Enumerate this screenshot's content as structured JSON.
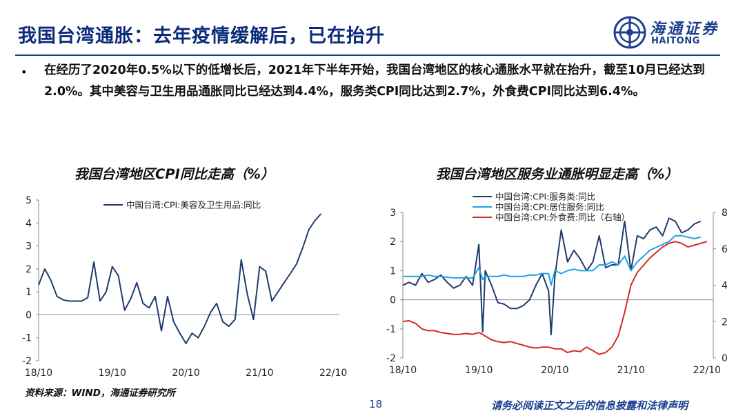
{
  "header": {
    "title": "我国台湾通胀：去年疫情缓解后，已在抬升",
    "logo_cn": "海通证券",
    "logo_en": "HAITONG"
  },
  "bullet": {
    "marker": "•",
    "text": "在经历了2020年0.5%以下的低增长后，2021年下半年开始，我国台湾地区的核心通胀水平就在抬升，截至10月已经达到2.0%。其中美容与卫生用品通胀同比已经达到4.4%，服务类CPI同比达到2.7%，外食费CPI同比达到6.4%。"
  },
  "footer": {
    "source": "资料来源：WIND，海通证券研究所",
    "page": "18",
    "disclaimer": "请务必阅读正文之后的信息披露和法律声明"
  },
  "colors": {
    "title": "#0b2a7a",
    "navy_series": "#1f3a6e",
    "light_blue_series": "#1aa3e8",
    "red_series": "#d42a20"
  },
  "chart_data": [
    {
      "type": "line",
      "title": "我国台湾地区CPI同比走高（%）",
      "x_ticks": [
        "18/10",
        "19/10",
        "20/10",
        "21/10",
        "22/10"
      ],
      "ylim": [
        -2,
        5
      ],
      "y_ticks": [
        "5",
        "4",
        "3",
        "2",
        "1",
        "0",
        "-1",
        "-2"
      ],
      "grid": false,
      "legend": "top",
      "x_range": [
        2018.75,
        2022.833
      ],
      "series": [
        {
          "name": "中国台湾:CPI:美容及卫生用品:同比",
          "color": "#1f3a6e",
          "points": [
            [
              2018.75,
              1.3
            ],
            [
              2018.833,
              2.0
            ],
            [
              2018.917,
              1.5
            ],
            [
              2019.0,
              0.8
            ],
            [
              2019.083,
              0.65
            ],
            [
              2019.167,
              0.6
            ],
            [
              2019.25,
              0.6
            ],
            [
              2019.333,
              0.6
            ],
            [
              2019.417,
              0.75
            ],
            [
              2019.5,
              2.3
            ],
            [
              2019.583,
              0.6
            ],
            [
              2019.667,
              1.0
            ],
            [
              2019.75,
              2.1
            ],
            [
              2019.833,
              1.7
            ],
            [
              2019.917,
              0.2
            ],
            [
              2020.0,
              0.7
            ],
            [
              2020.083,
              1.4
            ],
            [
              2020.167,
              0.5
            ],
            [
              2020.25,
              0.3
            ],
            [
              2020.333,
              0.8
            ],
            [
              2020.417,
              -0.7
            ],
            [
              2020.5,
              0.8
            ],
            [
              2020.583,
              -0.3
            ],
            [
              2020.667,
              -0.8
            ],
            [
              2020.75,
              -1.25
            ],
            [
              2020.833,
              -0.8
            ],
            [
              2020.917,
              -1.0
            ],
            [
              2021.0,
              -0.5
            ],
            [
              2021.083,
              0.1
            ],
            [
              2021.167,
              0.5
            ],
            [
              2021.25,
              -0.3
            ],
            [
              2021.333,
              -0.5
            ],
            [
              2021.417,
              -0.2
            ],
            [
              2021.5,
              2.4
            ],
            [
              2021.583,
              0.9
            ],
            [
              2021.667,
              -0.2
            ],
            [
              2021.75,
              2.1
            ],
            [
              2021.833,
              1.9
            ],
            [
              2021.917,
              0.6
            ],
            [
              2022.0,
              1.0
            ],
            [
              2022.083,
              1.4
            ],
            [
              2022.167,
              1.8
            ],
            [
              2022.25,
              2.2
            ],
            [
              2022.333,
              2.9
            ],
            [
              2022.417,
              3.7
            ],
            [
              2022.5,
              4.1
            ],
            [
              2022.583,
              4.4
            ]
          ]
        }
      ]
    },
    {
      "type": "line",
      "title": "我国台湾地区服务业通胀明显走高（%）",
      "x_ticks": [
        "18/10",
        "19/10",
        "20/10",
        "21/10",
        "22/10"
      ],
      "ylim": [
        -2,
        3
      ],
      "y_ticks": [
        "3",
        "2",
        "1",
        "0",
        "-1",
        "-2"
      ],
      "y2lim": [
        0,
        8
      ],
      "y2_ticks": [
        "8",
        "6",
        "4",
        "2",
        "0"
      ],
      "grid": false,
      "legend": "top",
      "x_range": [
        2018.75,
        2022.833
      ],
      "series": [
        {
          "name": "中国台湾:CPI:服务类:同比",
          "color": "#1f3a6e",
          "axis": "left",
          "points": [
            [
              2018.75,
              0.5
            ],
            [
              2018.833,
              0.6
            ],
            [
              2018.917,
              0.5
            ],
            [
              2019.0,
              0.9
            ],
            [
              2019.083,
              0.6
            ],
            [
              2019.167,
              0.7
            ],
            [
              2019.25,
              0.85
            ],
            [
              2019.333,
              0.6
            ],
            [
              2019.417,
              0.4
            ],
            [
              2019.5,
              0.5
            ],
            [
              2019.583,
              0.8
            ],
            [
              2019.667,
              0.5
            ],
            [
              2019.75,
              1.9
            ],
            [
              2019.8,
              -1.1
            ],
            [
              2019.833,
              1.0
            ],
            [
              2019.917,
              0.5
            ],
            [
              2020.0,
              -0.1
            ],
            [
              2020.083,
              -0.15
            ],
            [
              2020.167,
              -0.3
            ],
            [
              2020.25,
              -0.3
            ],
            [
              2020.333,
              -0.2
            ],
            [
              2020.417,
              0.0
            ],
            [
              2020.5,
              0.5
            ],
            [
              2020.583,
              0.9
            ],
            [
              2020.667,
              0.3
            ],
            [
              2020.7,
              -1.2
            ],
            [
              2020.75,
              0.8
            ],
            [
              2020.833,
              2.4
            ],
            [
              2020.917,
              1.3
            ],
            [
              2021.0,
              1.7
            ],
            [
              2021.083,
              1.4
            ],
            [
              2021.167,
              1.0
            ],
            [
              2021.25,
              1.3
            ],
            [
              2021.333,
              2.2
            ],
            [
              2021.417,
              1.1
            ],
            [
              2021.5,
              1.2
            ],
            [
              2021.583,
              1.2
            ],
            [
              2021.667,
              2.7
            ],
            [
              2021.75,
              1.0
            ],
            [
              2021.833,
              2.2
            ],
            [
              2021.917,
              2.1
            ],
            [
              2022.0,
              2.4
            ],
            [
              2022.083,
              2.5
            ],
            [
              2022.167,
              2.2
            ],
            [
              2022.25,
              2.8
            ],
            [
              2022.333,
              2.7
            ],
            [
              2022.417,
              2.3
            ],
            [
              2022.5,
              2.4
            ],
            [
              2022.583,
              2.6
            ],
            [
              2022.667,
              2.7
            ]
          ]
        },
        {
          "name": "中国台湾:CPI:居住服务:同比",
          "color": "#1aa3e8",
          "axis": "left",
          "points": [
            [
              2018.75,
              0.8
            ],
            [
              2018.917,
              0.8
            ],
            [
              2019.0,
              0.8
            ],
            [
              2019.083,
              0.85
            ],
            [
              2019.167,
              0.8
            ],
            [
              2019.25,
              0.8
            ],
            [
              2019.417,
              0.75
            ],
            [
              2019.583,
              0.75
            ],
            [
              2019.667,
              0.75
            ],
            [
              2019.75,
              1.1
            ],
            [
              2019.8,
              0.7
            ],
            [
              2019.833,
              0.8
            ],
            [
              2019.917,
              0.8
            ],
            [
              2020.0,
              0.8
            ],
            [
              2020.083,
              0.85
            ],
            [
              2020.167,
              0.8
            ],
            [
              2020.333,
              0.8
            ],
            [
              2020.417,
              0.85
            ],
            [
              2020.5,
              0.85
            ],
            [
              2020.583,
              0.9
            ],
            [
              2020.667,
              0.9
            ],
            [
              2020.7,
              0.5
            ],
            [
              2020.75,
              1.0
            ],
            [
              2020.833,
              0.9
            ],
            [
              2020.917,
              1.0
            ],
            [
              2021.0,
              1.05
            ],
            [
              2021.083,
              1.0
            ],
            [
              2021.167,
              1.0
            ],
            [
              2021.25,
              1.0
            ],
            [
              2021.333,
              1.2
            ],
            [
              2021.417,
              1.2
            ],
            [
              2021.5,
              1.3
            ],
            [
              2021.583,
              1.2
            ],
            [
              2021.667,
              1.5
            ],
            [
              2021.75,
              1.0
            ],
            [
              2021.833,
              1.3
            ],
            [
              2021.917,
              1.5
            ],
            [
              2022.0,
              1.7
            ],
            [
              2022.083,
              1.8
            ],
            [
              2022.167,
              1.9
            ],
            [
              2022.25,
              2.0
            ],
            [
              2022.333,
              2.2
            ],
            [
              2022.417,
              2.2
            ],
            [
              2022.5,
              2.15
            ],
            [
              2022.583,
              2.1
            ],
            [
              2022.667,
              2.15
            ]
          ]
        },
        {
          "name": "中国台湾:CPI:外食费:同比（右轴）",
          "color": "#d42a20",
          "axis": "right",
          "points": [
            [
              2018.75,
              2.0
            ],
            [
              2018.833,
              2.05
            ],
            [
              2018.917,
              1.9
            ],
            [
              2019.0,
              1.6
            ],
            [
              2019.083,
              1.5
            ],
            [
              2019.167,
              1.5
            ],
            [
              2019.25,
              1.4
            ],
            [
              2019.333,
              1.35
            ],
            [
              2019.417,
              1.3
            ],
            [
              2019.5,
              1.3
            ],
            [
              2019.583,
              1.35
            ],
            [
              2019.667,
              1.3
            ],
            [
              2019.75,
              1.4
            ],
            [
              2019.8,
              1.3
            ],
            [
              2019.833,
              1.2
            ],
            [
              2019.917,
              1.0
            ],
            [
              2020.0,
              0.9
            ],
            [
              2020.083,
              0.85
            ],
            [
              2020.167,
              0.9
            ],
            [
              2020.25,
              0.8
            ],
            [
              2020.333,
              0.7
            ],
            [
              2020.417,
              0.6
            ],
            [
              2020.5,
              0.55
            ],
            [
              2020.583,
              0.6
            ],
            [
              2020.667,
              0.6
            ],
            [
              2020.75,
              0.5
            ],
            [
              2020.833,
              0.5
            ],
            [
              2020.917,
              0.3
            ],
            [
              2021.0,
              0.4
            ],
            [
              2021.083,
              0.35
            ],
            [
              2021.167,
              0.6
            ],
            [
              2021.25,
              0.4
            ],
            [
              2021.333,
              0.2
            ],
            [
              2021.417,
              0.3
            ],
            [
              2021.5,
              0.6
            ],
            [
              2021.583,
              1.2
            ],
            [
              2021.667,
              2.5
            ],
            [
              2021.75,
              4.0
            ],
            [
              2021.833,
              4.7
            ],
            [
              2021.917,
              5.1
            ],
            [
              2022.0,
              5.5
            ],
            [
              2022.083,
              5.8
            ],
            [
              2022.167,
              6.1
            ],
            [
              2022.25,
              6.3
            ],
            [
              2022.333,
              6.4
            ],
            [
              2022.417,
              6.3
            ],
            [
              2022.5,
              6.1
            ],
            [
              2022.583,
              6.2
            ],
            [
              2022.667,
              6.3
            ],
            [
              2022.75,
              6.4
            ]
          ]
        }
      ]
    }
  ]
}
